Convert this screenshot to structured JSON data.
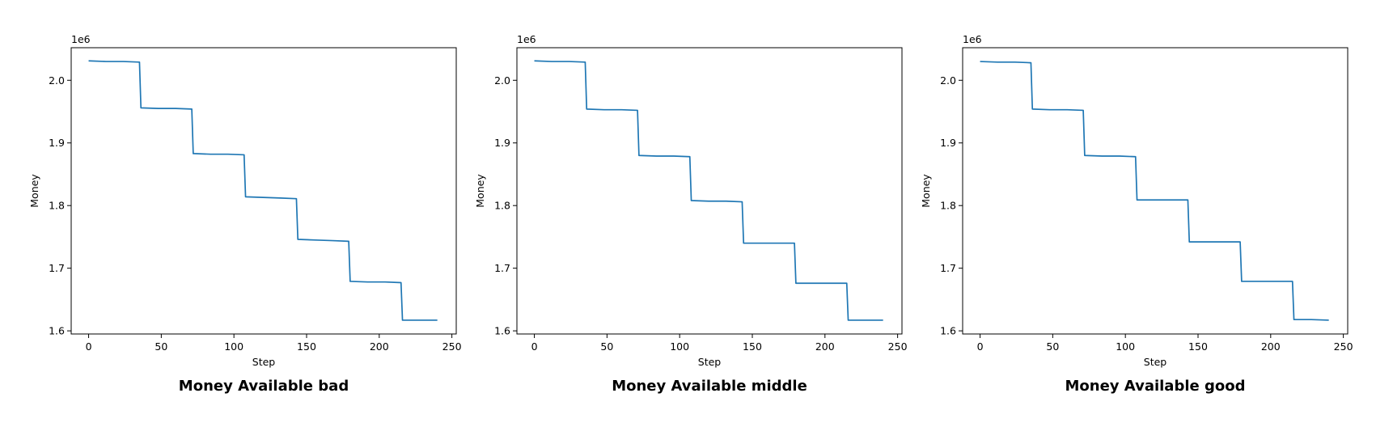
{
  "chart_data": [
    {
      "type": "line",
      "title": "Money Available bad",
      "xlabel": "Step",
      "ylabel": "Money",
      "y_offset_label": "1e6",
      "xlim": [
        -12,
        253
      ],
      "ylim": [
        1.595,
        2.052
      ],
      "xticks": [
        0,
        50,
        100,
        150,
        200,
        250
      ],
      "yticks": [
        1.6,
        1.7,
        1.8,
        1.9,
        2.0
      ],
      "ytick_labels": [
        "1.6",
        "1.7",
        "1.8",
        "1.9",
        "2.0"
      ],
      "grid": false,
      "color": "#1f77b4",
      "series": [
        {
          "x": [
            0,
            12,
            24,
            35,
            36,
            48,
            60,
            71,
            72,
            84,
            96,
            107,
            108,
            120,
            132,
            143,
            144,
            156,
            168,
            179,
            180,
            192,
            204,
            215,
            216,
            228,
            240
          ],
          "y": [
            2.031,
            2.03,
            2.03,
            2.029,
            1.956,
            1.955,
            1.955,
            1.954,
            1.883,
            1.882,
            1.882,
            1.881,
            1.814,
            1.813,
            1.812,
            1.811,
            1.746,
            1.745,
            1.744,
            1.743,
            1.679,
            1.678,
            1.678,
            1.677,
            1.617,
            1.617,
            1.617
          ]
        }
      ]
    },
    {
      "type": "line",
      "title": "Money Available middle",
      "xlabel": "Step",
      "ylabel": "Money",
      "y_offset_label": "1e6",
      "xlim": [
        -12,
        253
      ],
      "ylim": [
        1.595,
        2.052
      ],
      "xticks": [
        0,
        50,
        100,
        150,
        200,
        250
      ],
      "yticks": [
        1.6,
        1.7,
        1.8,
        1.9,
        2.0
      ],
      "ytick_labels": [
        "1.6",
        "1.7",
        "1.8",
        "1.9",
        "2.0"
      ],
      "grid": false,
      "color": "#1f77b4",
      "series": [
        {
          "x": [
            0,
            12,
            24,
            35,
            36,
            48,
            60,
            71,
            72,
            84,
            96,
            107,
            108,
            120,
            132,
            143,
            144,
            156,
            168,
            179,
            180,
            192,
            204,
            215,
            216,
            228,
            240
          ],
          "y": [
            2.031,
            2.03,
            2.03,
            2.029,
            1.954,
            1.953,
            1.953,
            1.952,
            1.88,
            1.879,
            1.879,
            1.878,
            1.808,
            1.807,
            1.807,
            1.806,
            1.74,
            1.74,
            1.74,
            1.74,
            1.676,
            1.676,
            1.676,
            1.676,
            1.617,
            1.617,
            1.617
          ]
        }
      ]
    },
    {
      "type": "line",
      "title": "Money Available good",
      "xlabel": "Step",
      "ylabel": "Money",
      "y_offset_label": "1e6",
      "xlim": [
        -12,
        253
      ],
      "ylim": [
        1.595,
        2.052
      ],
      "xticks": [
        0,
        50,
        100,
        150,
        200,
        250
      ],
      "yticks": [
        1.6,
        1.7,
        1.8,
        1.9,
        2.0
      ],
      "ytick_labels": [
        "1.6",
        "1.7",
        "1.8",
        "1.9",
        "2.0"
      ],
      "grid": false,
      "color": "#1f77b4",
      "series": [
        {
          "x": [
            0,
            12,
            24,
            35,
            36,
            48,
            60,
            71,
            72,
            84,
            96,
            107,
            108,
            120,
            132,
            143,
            144,
            156,
            168,
            179,
            180,
            192,
            204,
            215,
            216,
            228,
            240
          ],
          "y": [
            2.03,
            2.029,
            2.029,
            2.028,
            1.954,
            1.953,
            1.953,
            1.952,
            1.88,
            1.879,
            1.879,
            1.878,
            1.809,
            1.809,
            1.809,
            1.809,
            1.742,
            1.742,
            1.742,
            1.742,
            1.679,
            1.679,
            1.679,
            1.679,
            1.618,
            1.618,
            1.617
          ]
        }
      ]
    }
  ]
}
